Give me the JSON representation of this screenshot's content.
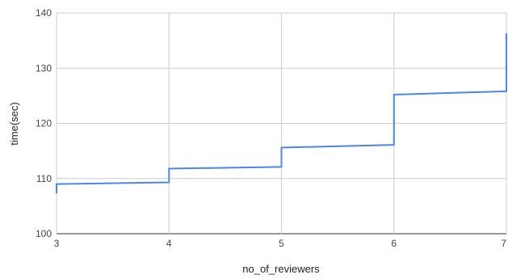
{
  "chart_data": {
    "type": "line",
    "title": "",
    "xlabel": "no_of_reviewers",
    "ylabel": "time(sec)",
    "xlim": [
      3,
      7
    ],
    "ylim": [
      100,
      140
    ],
    "x_ticks": [
      3,
      4,
      5,
      6,
      7
    ],
    "y_ticks": [
      100,
      110,
      120,
      130,
      140
    ],
    "grid": true,
    "legend": "none",
    "series": [
      {
        "color": "#4a86e8",
        "points": [
          [
            3,
            107.3
          ],
          [
            3,
            109.0
          ],
          [
            4,
            109.3
          ],
          [
            4,
            111.8
          ],
          [
            5,
            112.1
          ],
          [
            5,
            115.6
          ],
          [
            6,
            116.1
          ],
          [
            6,
            125.2
          ],
          [
            7,
            125.8
          ],
          [
            7,
            136.3
          ]
        ]
      }
    ]
  }
}
